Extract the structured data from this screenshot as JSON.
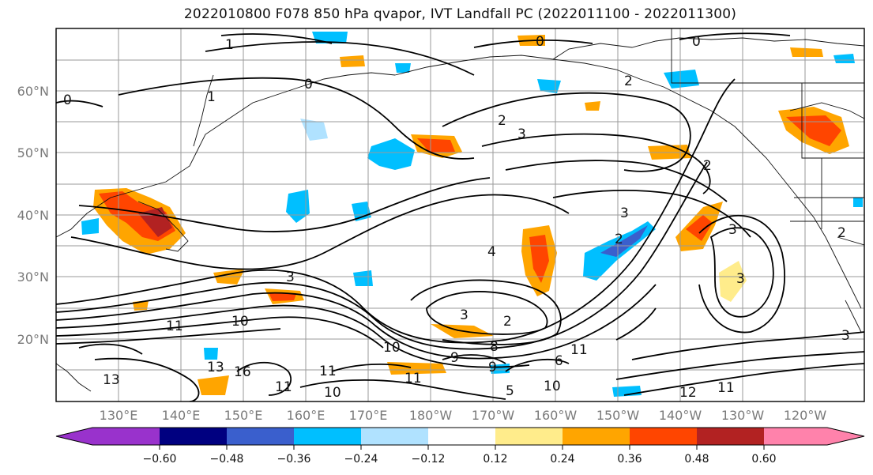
{
  "title": "2022010800 F078 850 hPa qvapor, IVT Landfall PC (2022011100 - 2022011300)",
  "latitude_labels": [
    "60°N",
    "50°N",
    "40°N",
    "30°N",
    "20°N"
  ],
  "longitude_labels": [
    "130°E",
    "140°E",
    "150°E",
    "160°E",
    "170°E",
    "180°W",
    "170°W",
    "160°W",
    "150°W",
    "140°W",
    "130°W",
    "120°W"
  ],
  "colorbar": {
    "colors": [
      "#9932cc",
      "#000080",
      "#3a5fcd",
      "#00bfff",
      "#b0e2ff",
      "#ffffff",
      "#ffec8b",
      "#ffa500",
      "#ff4500",
      "#b22222",
      "#ff82ab"
    ],
    "tick_labels": [
      "−0.60",
      "−0.48",
      "−0.36",
      "−0.24",
      "−0.12",
      "0.12",
      "0.24",
      "0.36",
      "0.48",
      "0.60"
    ]
  },
  "contour_labels": [
    "1",
    "1",
    "0",
    "0",
    "0",
    "0",
    "2",
    "3",
    "2",
    "2",
    "3",
    "3",
    "2",
    "3",
    "3",
    "4",
    "3",
    "2",
    "3",
    "2",
    "10",
    "11",
    "10",
    "11",
    "13",
    "13",
    "16",
    "11",
    "10",
    "11",
    "12",
    "11",
    "9",
    "8",
    "9",
    "10",
    "11",
    "5",
    "6"
  ]
}
